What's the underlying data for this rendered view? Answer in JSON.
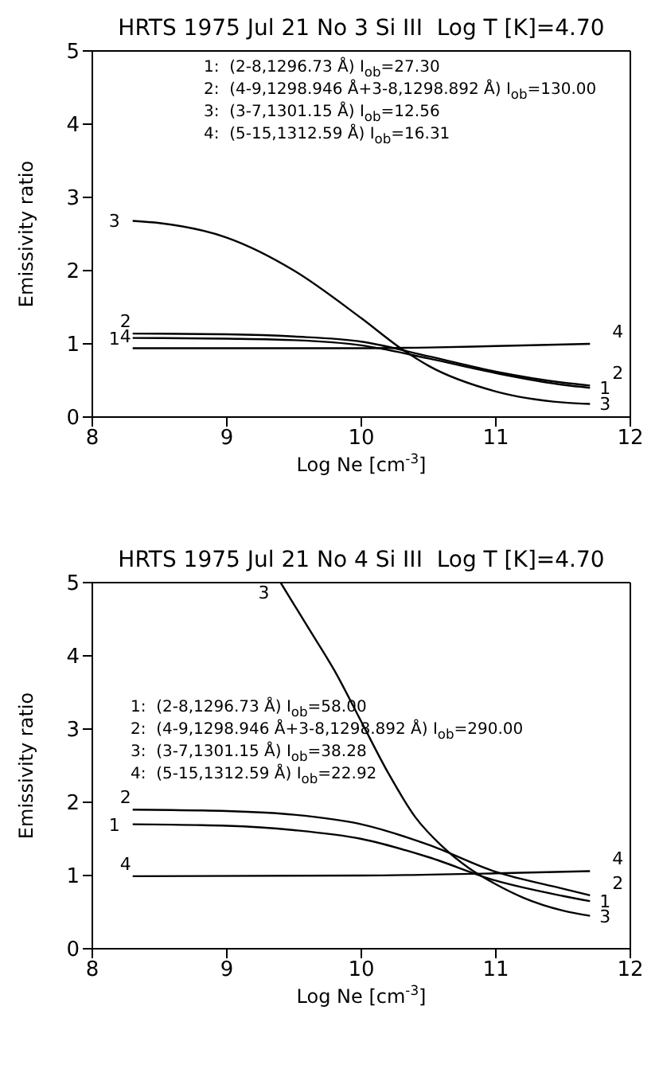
{
  "chart_data": [
    {
      "type": "line",
      "title": "HRTS 1975 Jul 21 No 3 Si III  Log T [K]=4.70",
      "xlabel": "Log Ne [cm$^{-3}$]",
      "ylabel": "Emissivity ratio",
      "xlim": [
        8,
        12
      ],
      "xticks": [
        8,
        9,
        10,
        11,
        12
      ],
      "ylim": [
        0,
        5
      ],
      "yticks": [
        0,
        1,
        2,
        3,
        4,
        5
      ],
      "marker": "none",
      "line_style": "solid",
      "annotations": [
        "1:  (2-8,1296.73 Å) I$_{ob}$=27.30",
        "2:  (4-9,1298.946 Å+3-8,1298.892 Å) I$_{ob}$=130.00",
        "3:  (3-7,1301.15 Å) I$_{ob}$=12.56",
        "4:  (5-15,1312.59 Å) I$_{ob}$=16.31"
      ],
      "series": [
        {
          "name": "1",
          "color": "#000000",
          "x": [
            8.3,
            9,
            9.5,
            10,
            10.5,
            11,
            11.5,
            11.7
          ],
          "values": [
            1.08,
            1.07,
            1.05,
            0.98,
            0.8,
            0.6,
            0.44,
            0.4
          ]
        },
        {
          "name": "2",
          "color": "#000000",
          "x": [
            8.3,
            9,
            9.5,
            10,
            10.5,
            11,
            11.5,
            11.7
          ],
          "values": [
            1.14,
            1.13,
            1.1,
            1.03,
            0.83,
            0.62,
            0.47,
            0.43
          ]
        },
        {
          "name": "3",
          "color": "#000000",
          "x": [
            8.3,
            8.5,
            9,
            9.5,
            10,
            10.3,
            10.5,
            11,
            11.5,
            11.7
          ],
          "values": [
            2.68,
            2.65,
            2.45,
            2.0,
            1.35,
            0.93,
            0.7,
            0.35,
            0.2,
            0.18
          ]
        },
        {
          "name": "4",
          "color": "#000000",
          "x": [
            8.3,
            9,
            10,
            10.5,
            11,
            11.7
          ],
          "values": [
            0.94,
            0.94,
            0.94,
            0.95,
            0.97,
            1.0
          ]
        }
      ]
    },
    {
      "type": "line",
      "title": "HRTS 1975 Jul 21 No 4 Si III  Log T [K]=4.70",
      "xlabel": "Log Ne [cm$^{-3}$]",
      "ylabel": "Emissivity ratio",
      "xlim": [
        8,
        12
      ],
      "xticks": [
        8,
        9,
        10,
        11,
        12
      ],
      "ylim": [
        0,
        5
      ],
      "yticks": [
        0,
        1,
        2,
        3,
        4,
        5
      ],
      "marker": "none",
      "line_style": "solid",
      "annotations": [
        "1:  (2-8,1296.73 Å) I$_{ob}$=58.00",
        "2:  (4-9,1298.946 Å+3-8,1298.892 Å) I$_{ob}$=290.00",
        "3:  (3-7,1301.15 Å) I$_{ob}$=38.28",
        "4:  (5-15,1312.59 Å) I$_{ob}$=22.92"
      ],
      "series": [
        {
          "name": "1",
          "color": "#000000",
          "x": [
            8.3,
            9,
            9.5,
            10,
            10.5,
            11,
            11.5,
            11.7
          ],
          "values": [
            1.7,
            1.68,
            1.62,
            1.5,
            1.25,
            0.93,
            0.72,
            0.65
          ]
        },
        {
          "name": "2",
          "color": "#000000",
          "x": [
            8.3,
            9,
            9.5,
            10,
            10.5,
            11,
            11.5,
            11.7
          ],
          "values": [
            1.9,
            1.88,
            1.83,
            1.7,
            1.42,
            1.05,
            0.82,
            0.73
          ]
        },
        {
          "name": "3",
          "color": "#000000",
          "x": [
            9.4,
            9.6,
            9.8,
            10,
            10.2,
            10.4,
            10.6,
            10.8,
            11,
            11.2,
            11.5,
            11.7
          ],
          "values": [
            5.0,
            4.4,
            3.8,
            3.1,
            2.4,
            1.8,
            1.4,
            1.1,
            0.88,
            0.7,
            0.52,
            0.45
          ]
        },
        {
          "name": "4",
          "color": "#000000",
          "x": [
            8.3,
            10,
            11,
            11.7
          ],
          "values": [
            0.99,
            1.0,
            1.03,
            1.06
          ]
        }
      ]
    }
  ]
}
